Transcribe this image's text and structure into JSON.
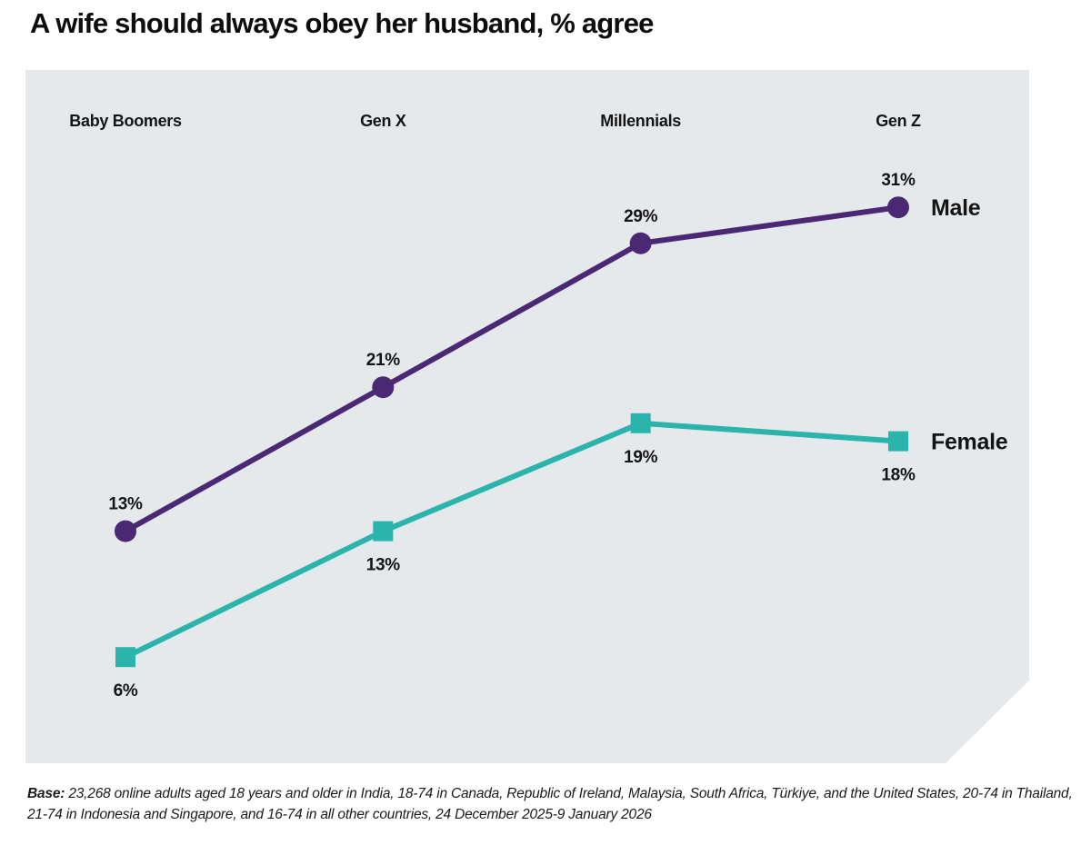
{
  "title": "A wife should always obey her husband, % agree",
  "base_note": {
    "prefix": "Base:",
    "text": " 23,268 online adults aged 18 years and older in India, 18-74 in Canada, Republic of Ireland, Malaysia, South Africa, Türkiye, and the United States, 20-74 in Thailand, 21-74 in Indonesia and Singapore, and 16-74 in all other countries, 24 December 2025-9 January 2026"
  },
  "colors": {
    "male": "#4a2873",
    "female": "#2ab4ac",
    "panel_bg": "#e6e9ec",
    "text": "#141414"
  },
  "chart_data": {
    "type": "line",
    "title": "A wife should always obey her husband, % agree",
    "categories": [
      "Baby Boomers",
      "Gen X",
      "Millennials",
      "Gen Z"
    ],
    "series": [
      {
        "name": "Male",
        "values": [
          13,
          21,
          29,
          31
        ],
        "color": "#4a2873",
        "marker": "circle",
        "label_position": "above"
      },
      {
        "name": "Female",
        "values": [
          6,
          13,
          19,
          18
        ],
        "color": "#2ab4ac",
        "marker": "square",
        "label_position": "below"
      }
    ],
    "value_suffix": "%",
    "xlabel": "",
    "ylabel": "",
    "ylim": [
      0,
      38
    ],
    "grid": false,
    "axes_hidden": true,
    "legend_position": "right-of-last-point"
  }
}
